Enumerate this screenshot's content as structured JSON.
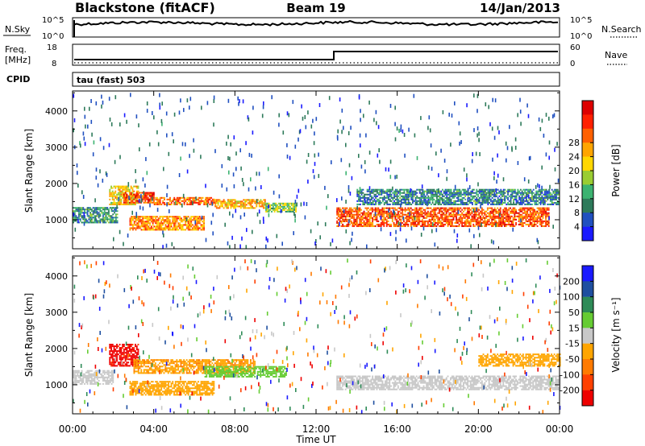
{
  "header": {
    "station": "Blackstone (fitACF)",
    "beam": "Beam 19",
    "date": "14/Jan/2013"
  },
  "ctrl_panels": {
    "nsky": {
      "label": "N.Sky",
      "ticks": [
        "10^5",
        "10^0"
      ],
      "right_label": "N.Search",
      "right_ticks": [
        "10^5",
        "10^0"
      ]
    },
    "freq": {
      "label_lines": [
        "Freq.",
        "[MHz]"
      ],
      "ticks": [
        "18",
        "8"
      ],
      "right_label": "Nave",
      "right_ticks": [
        "60",
        "0"
      ]
    },
    "cpid": {
      "label": "CPID",
      "text": "tau (fast) 503"
    }
  },
  "chart_data": [
    {
      "type": "heatmap",
      "panel": "power",
      "ylabel": "Slant Range [km]",
      "yticks": [
        "1000",
        "2000",
        "3000",
        "4000"
      ],
      "ylim": [
        200,
        4550
      ],
      "xlim": [
        0,
        24
      ],
      "colorbar": {
        "label": "Power [dB]",
        "ticks": [
          "4",
          "8",
          "12",
          "16",
          "20",
          "24",
          "28"
        ],
        "colors": [
          "#1a1aff",
          "#2050c0",
          "#2d7a5a",
          "#3cb371",
          "#9acd32",
          "#ffd700",
          "#ffa500",
          "#ff6000",
          "#ff2000",
          "#dd0000"
        ],
        "range": [
          0,
          32
        ]
      },
      "bands": [
        {
          "t": [
            0.0,
            2.2
          ],
          "r": [
            900,
            1350
          ],
          "val": 9
        },
        {
          "t": [
            1.8,
            3.2
          ],
          "r": [
            1400,
            1900
          ],
          "val": 18
        },
        {
          "t": [
            2.5,
            4.0
          ],
          "r": [
            1450,
            1750
          ],
          "val": 26
        },
        {
          "t": [
            4.0,
            7.0
          ],
          "r": [
            1400,
            1600
          ],
          "val": 24
        },
        {
          "t": [
            7.0,
            9.5
          ],
          "r": [
            1300,
            1550
          ],
          "val": 20
        },
        {
          "t": [
            9.5,
            11.0
          ],
          "r": [
            1200,
            1450
          ],
          "val": 14
        },
        {
          "t": [
            2.8,
            6.5
          ],
          "r": [
            700,
            1100
          ],
          "val": 22
        },
        {
          "t": [
            13.0,
            23.5
          ],
          "r": [
            800,
            1300
          ],
          "val": 25
        },
        {
          "t": [
            14.0,
            24.0
          ],
          "r": [
            1400,
            1850
          ],
          "val": 8
        }
      ]
    },
    {
      "type": "heatmap",
      "panel": "velocity",
      "ylabel": "Slant Range [km]",
      "yticks": [
        "1000",
        "2000",
        "3000",
        "4000"
      ],
      "ylim": [
        200,
        4550
      ],
      "xlim": [
        0,
        24
      ],
      "xticks": [
        "00:00",
        "04:00",
        "08:00",
        "12:00",
        "16:00",
        "20:00",
        "00:00"
      ],
      "xlabel": "Time UT",
      "colorbar": {
        "label": "Velocity [m s⁻¹]",
        "ticks": [
          "200",
          "100",
          "50",
          "15",
          "-15",
          "-50",
          "-100",
          "-200"
        ],
        "colors": [
          "#1a1aff",
          "#1f4fa0",
          "#2e8b57",
          "#66cc33",
          "#c8c8c8",
          "#ffa500",
          "#ff7a00",
          "#ff4000",
          "#ee0000"
        ],
        "range": [
          -250,
          250
        ]
      },
      "bands": [
        {
          "t": [
            1.8,
            3.2
          ],
          "r": [
            1500,
            2100
          ],
          "val": -200
        },
        {
          "t": [
            3.0,
            9.0
          ],
          "r": [
            1300,
            1700
          ],
          "val": -80
        },
        {
          "t": [
            2.8,
            7.0
          ],
          "r": [
            700,
            1100
          ],
          "val": -60
        },
        {
          "t": [
            6.5,
            10.5
          ],
          "r": [
            1200,
            1500
          ],
          "val": 40
        },
        {
          "t": [
            0.0,
            2.0
          ],
          "r": [
            1000,
            1400
          ],
          "val": -10
        },
        {
          "t": [
            13.0,
            24.0
          ],
          "r": [
            850,
            1250
          ],
          "val": 0
        },
        {
          "t": [
            20.0,
            24.0
          ],
          "r": [
            1500,
            1850
          ],
          "val": -70
        }
      ]
    }
  ],
  "colors": {
    "axis": "#000000"
  }
}
